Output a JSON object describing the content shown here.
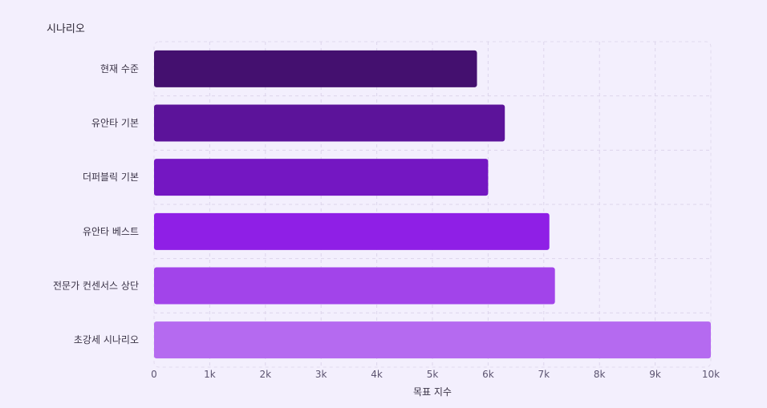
{
  "chart_data": {
    "type": "bar",
    "orientation": "horizontal",
    "title": "",
    "y_axis_title": "시나리오",
    "xlabel": "목표 지수",
    "categories": [
      "현재 수준",
      "유안타 기본",
      "더퍼블릭 기본",
      "유안타 베스트",
      "전문가 컨센서스 상단",
      "초강세 시나리오"
    ],
    "values": [
      5800,
      6300,
      6000,
      7100,
      7200,
      10000
    ],
    "colors": [
      "#44106f",
      "#5c139a",
      "#7417c2",
      "#8f1fe6",
      "#a244ea",
      "#b56af0"
    ],
    "xlim": [
      0,
      10000
    ],
    "xticks": [
      0,
      1000,
      2000,
      3000,
      4000,
      5000,
      6000,
      7000,
      8000,
      9000,
      10000
    ],
    "xtick_labels": [
      "0",
      "1k",
      "2k",
      "3k",
      "4k",
      "5k",
      "6k",
      "7k",
      "8k",
      "9k",
      "10k"
    ],
    "grid": true
  }
}
